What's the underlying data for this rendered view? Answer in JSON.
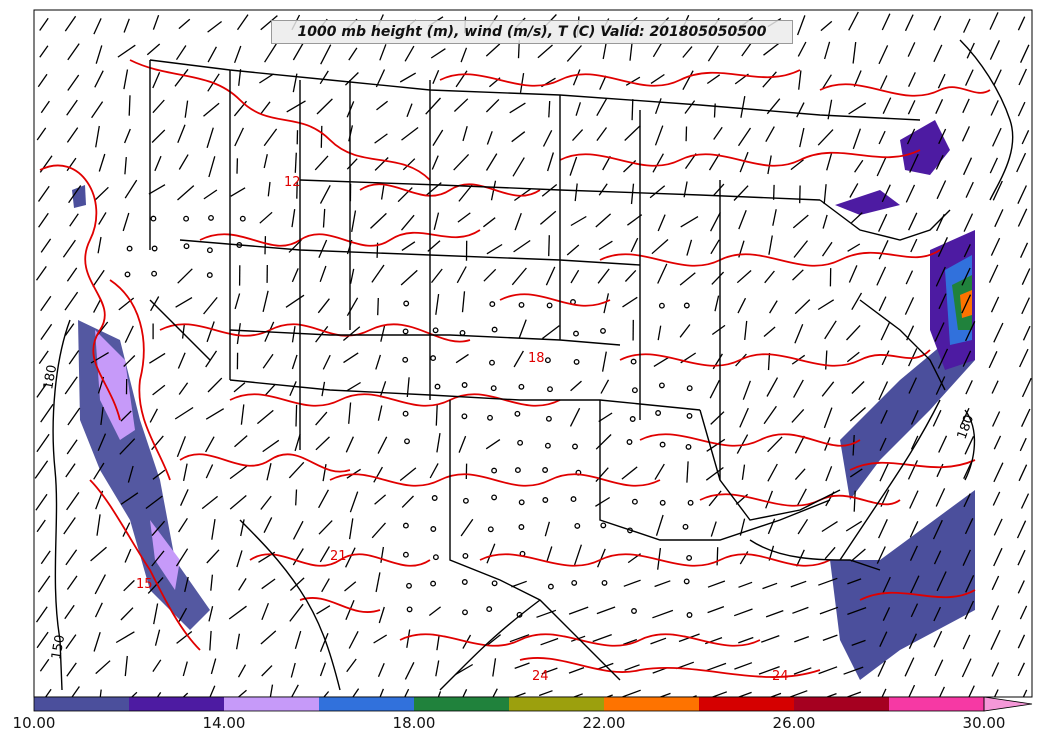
{
  "title": "1000 mb height (m), wind (m/s), T (C) Valid: 201805050500",
  "colorbar": {
    "colors": [
      "#4b4f9c",
      "#4d1ba2",
      "#c69af9",
      "#3171dc",
      "#20823c",
      "#9ca00d",
      "#fe7300",
      "#d50000",
      "#a50020",
      "#f639a4",
      "#f598d8"
    ],
    "tick_labels": [
      "10.00",
      "14.00",
      "18.00",
      "22.00",
      "26.00",
      "30.00"
    ]
  },
  "contour_labels": [
    {
      "text": "180",
      "cls": "black"
    },
    {
      "text": "180",
      "cls": "black"
    },
    {
      "text": "150",
      "cls": "black"
    },
    {
      "text": "24",
      "cls": "red"
    },
    {
      "text": "21",
      "cls": "red"
    },
    {
      "text": "18",
      "cls": "red"
    },
    {
      "text": "12",
      "cls": "red"
    },
    {
      "text": "15",
      "cls": "red"
    },
    {
      "text": "24",
      "cls": "red"
    }
  ],
  "colors": {
    "height_contour": "#000000",
    "temperature_contour": "#e00000",
    "wind_barb": "#000000",
    "frame": "#000000"
  }
}
